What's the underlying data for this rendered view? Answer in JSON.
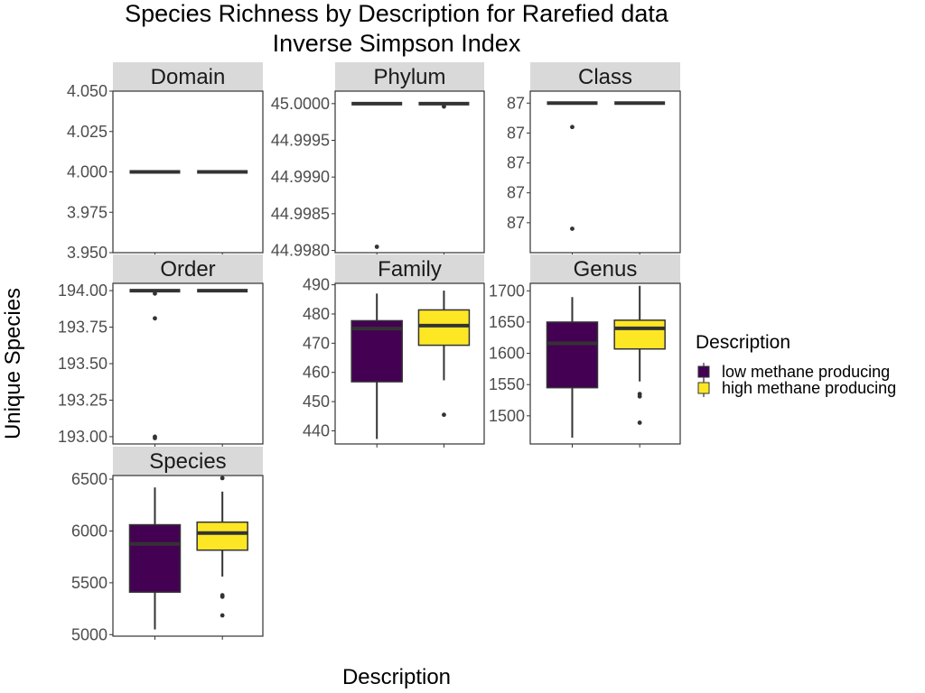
{
  "chart_data": {
    "type": "box",
    "title": "Species Richness by Description for Rarefied data",
    "subtitle": "Inverse Simpson Index",
    "xlabel": "Description",
    "ylabel": "Unique Species",
    "legend": {
      "title": "Description",
      "placement": "right",
      "entries": [
        {
          "label": "low methane producing",
          "color": "#440154"
        },
        {
          "label": "high methane producing",
          "color": "#FDE725"
        }
      ]
    },
    "categories": [
      "low methane producing",
      "high methane producing"
    ],
    "grid": false,
    "panels": [
      {
        "name": "Domain",
        "ylim": [
          3.95,
          4.05
        ],
        "ticks": [
          4.05,
          4.025,
          4.0,
          3.975,
          3.95
        ],
        "tick_labels": [
          "4.050",
          "4.025",
          "4.000",
          "3.975",
          "3.950"
        ],
        "boxes": [
          {
            "q1": 4.0,
            "median": 4.0,
            "q3": 4.0,
            "whisker_low": 4.0,
            "whisker_high": 4.0,
            "outliers": []
          },
          {
            "q1": 4.0,
            "median": 4.0,
            "q3": 4.0,
            "whisker_low": 4.0,
            "whisker_high": 4.0,
            "outliers": []
          }
        ]
      },
      {
        "name": "Phylum",
        "ylim": [
          44.99797,
          45.00017
        ],
        "ticks": [
          45.0,
          44.9995,
          44.999,
          44.9985,
          44.998
        ],
        "tick_labels": [
          "45.0000",
          "44.9995",
          "44.9990",
          "44.9985",
          "44.9980"
        ],
        "boxes": [
          {
            "q1": 45.0,
            "median": 45.0,
            "q3": 45.0,
            "whisker_low": 45.0,
            "whisker_high": 45.0,
            "outliers": [
              44.99805
            ]
          },
          {
            "q1": 45.0,
            "median": 45.0,
            "q3": 45.0,
            "whisker_low": 45.0,
            "whisker_high": 45.0,
            "outliers": [
              44.99996
            ]
          }
        ]
      },
      {
        "name": "Class",
        "ylim": [
          86.99975,
          87.00002
        ],
        "ticks": [
          87.0,
          86.99995,
          86.9999,
          86.99985,
          86.9998
        ],
        "tick_labels": [
          "87",
          "87",
          "87",
          "87",
          "87"
        ],
        "boxes": [
          {
            "q1": 87.0,
            "median": 87.0,
            "q3": 87.0,
            "whisker_low": 87.0,
            "whisker_high": 87.0,
            "outliers": [
              86.99996,
              86.99979
            ]
          },
          {
            "q1": 87.0,
            "median": 87.0,
            "q3": 87.0,
            "whisker_low": 87.0,
            "whisker_high": 87.0,
            "outliers": []
          }
        ]
      },
      {
        "name": "Order",
        "ylim": [
          192.95,
          194.05
        ],
        "ticks": [
          194.0,
          193.75,
          193.5,
          193.25,
          193.0
        ],
        "tick_labels": [
          "194.00",
          "193.75",
          "193.50",
          "193.25",
          "193.00"
        ],
        "boxes": [
          {
            "q1": 194.0,
            "median": 194.0,
            "q3": 194.0,
            "whisker_low": 194.0,
            "whisker_high": 194.0,
            "outliers": [
              193.98,
              193.81,
              193.0,
              192.99
            ]
          },
          {
            "q1": 194.0,
            "median": 194.0,
            "q3": 194.0,
            "whisker_low": 194.0,
            "whisker_high": 194.0,
            "outliers": []
          }
        ]
      },
      {
        "name": "Family",
        "ylim": [
          435.5,
          490.5
        ],
        "ticks": [
          490,
          480,
          470,
          460,
          450,
          440
        ],
        "tick_labels": [
          "490",
          "480",
          "470",
          "460",
          "450",
          "440"
        ],
        "boxes": [
          {
            "q1": 456.8,
            "median": 475.0,
            "q3": 477.7,
            "whisker_low": 437.2,
            "whisker_high": 487.0,
            "outliers": []
          },
          {
            "q1": 469.3,
            "median": 476.0,
            "q3": 481.4,
            "whisker_low": 457.3,
            "whisker_high": 488.0,
            "outliers": [
              445.5
            ]
          }
        ]
      },
      {
        "name": "Genus",
        "ylim": [
          1455,
          1712
        ],
        "ticks": [
          1700,
          1650,
          1600,
          1550,
          1500
        ],
        "tick_labels": [
          "1700",
          "1650",
          "1600",
          "1550",
          "1500"
        ],
        "boxes": [
          {
            "q1": 1545,
            "median": 1616,
            "q3": 1650,
            "whisker_low": 1465,
            "whisker_high": 1690,
            "outliers": []
          },
          {
            "q1": 1607,
            "median": 1640,
            "q3": 1653,
            "whisker_low": 1555,
            "whisker_high": 1708,
            "outliers": [
              1535,
              1531,
              1489
            ]
          }
        ]
      },
      {
        "name": "Species",
        "ylim": [
          4985,
          6535
        ],
        "ticks": [
          6500,
          6000,
          5500,
          5000
        ],
        "tick_labels": [
          "6500",
          "6000",
          "5500",
          "5000"
        ],
        "boxes": [
          {
            "q1": 5410,
            "median": 5875,
            "q3": 6060,
            "whisker_low": 5050,
            "whisker_high": 6420,
            "outliers": []
          },
          {
            "q1": 5815,
            "median": 5980,
            "q3": 6085,
            "whisker_low": 5560,
            "whisker_high": 6380,
            "outliers": [
              6510,
              5380,
              5365,
              5185
            ]
          }
        ]
      }
    ]
  }
}
